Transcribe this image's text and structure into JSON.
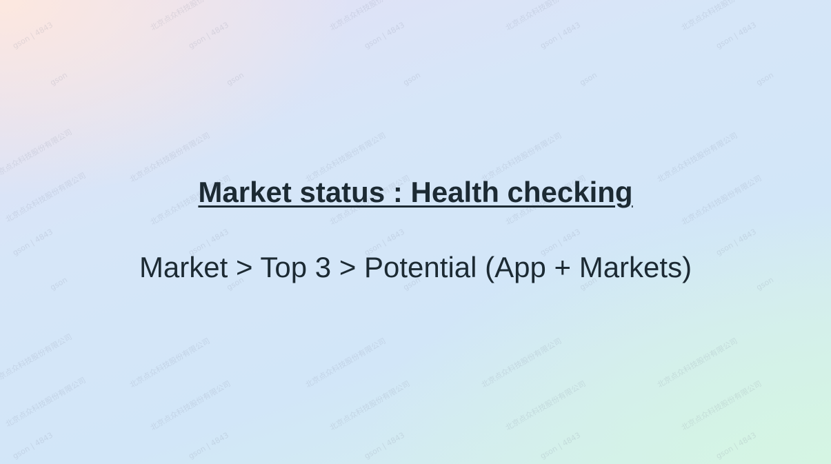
{
  "slide": {
    "title": "Market status : Health checking",
    "subtitle": "Market > Top 3 > Potential (App + Markets)"
  },
  "watermark": {
    "company_text": "北京点众科技股份有限公司",
    "user_text": "gson | 4843",
    "short_text": "gson"
  }
}
